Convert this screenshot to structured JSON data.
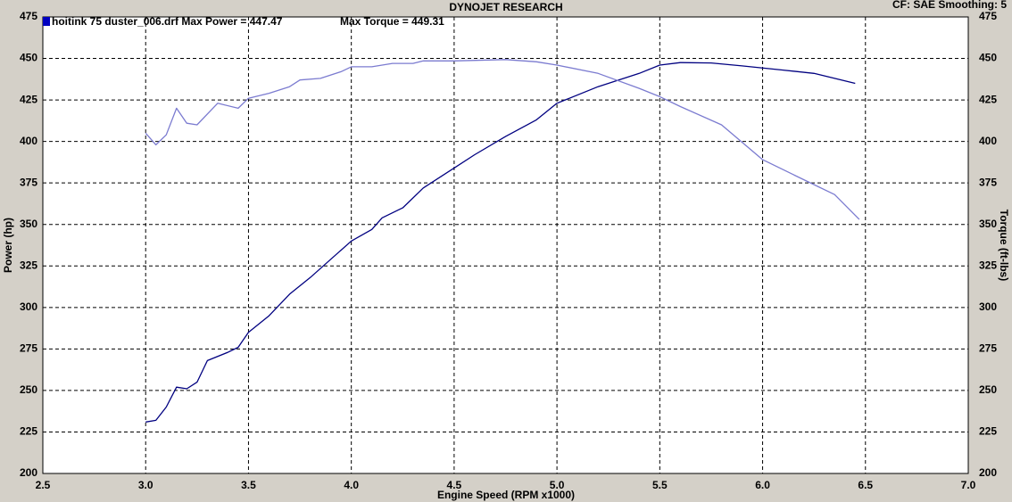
{
  "chart_data": {
    "type": "line",
    "title": "DYNOJET RESEARCH",
    "subtitle": "CF: SAE  Smoothing: 5",
    "legend_text": "hoitink 75 duster_006.drf Max Power = 447.47",
    "annotation": "Max Torque = 449.31",
    "x_label": "Engine Speed (RPM x1000)",
    "y_label": "Power (hp)",
    "y2_label": "Torque (ft-lbs)",
    "xlim": [
      2.5,
      7.0
    ],
    "xticks": [
      2.5,
      {
        "value": 3,
        "label": "3.0"
      },
      3.5,
      {
        "value": 4,
        "label": "4.0"
      },
      4.5,
      {
        "value": 5,
        "label": "5.0"
      },
      5.5,
      {
        "value": 6,
        "label": "6.0"
      },
      6.5,
      {
        "value": 7,
        "label": "7.0"
      }
    ],
    "ylim": [
      200,
      475
    ],
    "yticks": [
      200,
      225,
      250,
      275,
      300,
      325,
      350,
      375,
      400,
      425,
      450,
      475
    ],
    "y2lim": [
      200,
      475
    ],
    "y2ticks": [
      200,
      225,
      250,
      275,
      300,
      325,
      350,
      375,
      400,
      425,
      450,
      475
    ],
    "grid": true,
    "series": [
      {
        "name": "Power",
        "color": "#000080",
        "x": [
          3.0,
          3.05,
          3.1,
          3.15,
          3.2,
          3.25,
          3.3,
          3.4,
          3.45,
          3.5,
          3.6,
          3.7,
          3.8,
          3.9,
          4.0,
          4.1,
          4.15,
          4.25,
          4.35,
          4.5,
          4.6,
          4.75,
          4.9,
          5.0,
          5.2,
          5.4,
          5.5,
          5.6,
          5.75,
          5.9,
          6.1,
          6.25,
          6.45
        ],
        "values": [
          231,
          232,
          240,
          252,
          251,
          255,
          268,
          273,
          276,
          285,
          295,
          308,
          318,
          329,
          340,
          347,
          354,
          360,
          372,
          384,
          392,
          403,
          413,
          423,
          433,
          441,
          446,
          447.5,
          447.3,
          445.5,
          443,
          441,
          435
        ]
      },
      {
        "name": "Torque",
        "color": "#7b7bd0",
        "axis": "y2",
        "x": [
          3.0,
          3.05,
          3.1,
          3.15,
          3.2,
          3.25,
          3.35,
          3.45,
          3.5,
          3.6,
          3.7,
          3.75,
          3.85,
          3.95,
          4.0,
          4.1,
          4.2,
          4.3,
          4.35,
          4.5,
          4.75,
          4.9,
          5.0,
          5.2,
          5.4,
          5.5,
          5.6,
          5.8,
          6.0,
          6.2,
          6.35,
          6.47
        ],
        "values": [
          405,
          398,
          404,
          420,
          411,
          410,
          423,
          420,
          426,
          429,
          433,
          437,
          438,
          442,
          445,
          445,
          447,
          447,
          448.5,
          448.5,
          449.3,
          448,
          446,
          441,
          432,
          427,
          421,
          410,
          389,
          377,
          368,
          353
        ]
      }
    ]
  }
}
